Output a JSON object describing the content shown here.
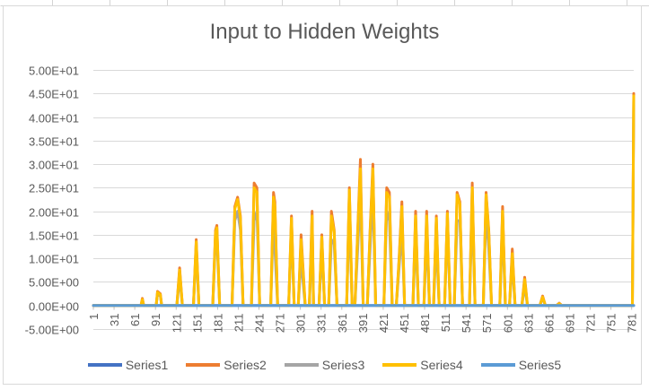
{
  "chart_data": {
    "type": "line",
    "title": "Input to Hidden Weights",
    "xlabel": "",
    "ylabel": "",
    "ylim": [
      -5,
      50
    ],
    "y_ticks": [
      -5,
      0,
      5,
      10,
      15,
      20,
      25,
      30,
      35,
      40,
      45,
      50
    ],
    "y_tick_labels": [
      "-5.00E+00",
      "0.00E+00",
      "5.00E+00",
      "1.00E+01",
      "1.50E+01",
      "2.00E+01",
      "2.50E+01",
      "3.00E+01",
      "3.50E+01",
      "4.00E+01",
      "4.50E+01",
      "5.00E+01"
    ],
    "x_ticks": [
      1,
      31,
      61,
      91,
      121,
      151,
      181,
      211,
      241,
      271,
      301,
      331,
      361,
      391,
      421,
      451,
      481,
      511,
      541,
      571,
      601,
      631,
      661,
      691,
      721,
      751,
      781
    ],
    "x_range": [
      1,
      784
    ],
    "grid": true,
    "legend_position": "bottom",
    "series": [
      {
        "name": "Series1",
        "color": "#4472c4",
        "points": [
          [
            1,
            0
          ],
          [
            784,
            0
          ]
        ]
      },
      {
        "name": "Series2",
        "color": "#ed7d31",
        "points": [
          [
            1,
            0
          ],
          [
            70,
            0
          ],
          [
            72,
            1.5
          ],
          [
            74,
            0
          ],
          [
            92,
            0
          ],
          [
            94,
            3
          ],
          [
            98,
            2.5
          ],
          [
            100,
            0
          ],
          [
            122,
            0
          ],
          [
            126,
            8
          ],
          [
            130,
            0
          ],
          [
            146,
            0
          ],
          [
            150,
            14
          ],
          [
            154,
            0
          ],
          [
            174,
            0
          ],
          [
            178,
            16
          ],
          [
            180,
            17
          ],
          [
            184,
            0
          ],
          [
            202,
            0
          ],
          [
            206,
            21
          ],
          [
            210,
            23
          ],
          [
            214,
            19
          ],
          [
            218,
            0
          ],
          [
            230,
            0
          ],
          [
            234,
            26
          ],
          [
            238,
            25
          ],
          [
            242,
            0
          ],
          [
            258,
            0
          ],
          [
            262,
            24
          ],
          [
            264,
            22
          ],
          [
            268,
            0
          ],
          [
            284,
            0
          ],
          [
            288,
            19
          ],
          [
            292,
            0
          ],
          [
            298,
            0
          ],
          [
            302,
            15
          ],
          [
            306,
            5
          ],
          [
            308,
            0
          ],
          [
            314,
            0
          ],
          [
            318,
            20
          ],
          [
            320,
            0
          ],
          [
            328,
            0
          ],
          [
            332,
            15
          ],
          [
            336,
            0
          ],
          [
            342,
            0
          ],
          [
            346,
            20
          ],
          [
            350,
            16
          ],
          [
            354,
            0
          ],
          [
            368,
            0
          ],
          [
            372,
            25
          ],
          [
            376,
            0
          ],
          [
            380,
            0
          ],
          [
            384,
            16
          ],
          [
            388,
            31
          ],
          [
            392,
            0
          ],
          [
            398,
            0
          ],
          [
            402,
            16
          ],
          [
            406,
            30
          ],
          [
            410,
            0
          ],
          [
            422,
            0
          ],
          [
            426,
            25
          ],
          [
            430,
            24
          ],
          [
            434,
            0
          ],
          [
            440,
            0
          ],
          [
            444,
            10
          ],
          [
            448,
            22
          ],
          [
            452,
            0
          ],
          [
            464,
            0
          ],
          [
            468,
            20
          ],
          [
            472,
            0
          ],
          [
            480,
            0
          ],
          [
            484,
            20
          ],
          [
            488,
            0
          ],
          [
            494,
            0
          ],
          [
            498,
            19
          ],
          [
            502,
            0
          ],
          [
            510,
            0
          ],
          [
            514,
            20
          ],
          [
            518,
            0
          ],
          [
            524,
            0
          ],
          [
            528,
            24
          ],
          [
            532,
            22
          ],
          [
            536,
            0
          ],
          [
            546,
            0
          ],
          [
            550,
            26
          ],
          [
            554,
            0
          ],
          [
            566,
            0
          ],
          [
            570,
            24
          ],
          [
            574,
            16
          ],
          [
            578,
            0
          ],
          [
            590,
            0
          ],
          [
            594,
            21
          ],
          [
            598,
            0
          ],
          [
            604,
            0
          ],
          [
            608,
            12
          ],
          [
            612,
            0
          ],
          [
            622,
            0
          ],
          [
            626,
            6
          ],
          [
            630,
            0
          ],
          [
            648,
            0
          ],
          [
            652,
            2
          ],
          [
            656,
            0
          ],
          [
            672,
            0
          ],
          [
            676,
            0.5
          ],
          [
            680,
            0
          ],
          [
            782,
            0
          ],
          [
            784,
            45
          ]
        ]
      },
      {
        "name": "Series3",
        "color": "#a5a5a5",
        "points": [
          [
            1,
            0
          ],
          [
            70,
            0
          ],
          [
            72,
            1
          ],
          [
            74,
            0
          ],
          [
            92,
            0
          ],
          [
            94,
            2.5
          ],
          [
            98,
            2
          ],
          [
            100,
            0
          ],
          [
            122,
            0
          ],
          [
            126,
            6
          ],
          [
            130,
            0
          ],
          [
            146,
            0
          ],
          [
            150,
            12
          ],
          [
            154,
            0
          ],
          [
            174,
            0
          ],
          [
            178,
            14
          ],
          [
            180,
            15
          ],
          [
            184,
            0
          ],
          [
            202,
            0
          ],
          [
            206,
            18
          ],
          [
            210,
            20
          ],
          [
            214,
            16
          ],
          [
            218,
            0
          ],
          [
            230,
            0
          ],
          [
            234,
            18
          ],
          [
            238,
            20
          ],
          [
            242,
            0
          ],
          [
            258,
            0
          ],
          [
            262,
            19
          ],
          [
            264,
            12
          ],
          [
            268,
            0
          ],
          [
            284,
            0
          ],
          [
            288,
            16
          ],
          [
            292,
            0
          ],
          [
            298,
            0
          ],
          [
            302,
            10
          ],
          [
            306,
            3
          ],
          [
            308,
            0
          ],
          [
            314,
            0
          ],
          [
            318,
            15
          ],
          [
            320,
            0
          ],
          [
            328,
            0
          ],
          [
            332,
            12
          ],
          [
            336,
            0
          ],
          [
            342,
            0
          ],
          [
            346,
            14
          ],
          [
            350,
            13
          ],
          [
            354,
            0
          ],
          [
            368,
            0
          ],
          [
            372,
            20
          ],
          [
            376,
            0
          ],
          [
            380,
            0
          ],
          [
            384,
            12
          ],
          [
            388,
            24
          ],
          [
            392,
            0
          ],
          [
            398,
            0
          ],
          [
            402,
            12
          ],
          [
            406,
            24
          ],
          [
            410,
            0
          ],
          [
            422,
            0
          ],
          [
            426,
            20
          ],
          [
            430,
            18
          ],
          [
            434,
            0
          ],
          [
            440,
            0
          ],
          [
            444,
            8
          ],
          [
            448,
            16
          ],
          [
            452,
            0
          ],
          [
            464,
            0
          ],
          [
            468,
            15
          ],
          [
            472,
            0
          ],
          [
            480,
            0
          ],
          [
            484,
            15
          ],
          [
            488,
            0
          ],
          [
            494,
            0
          ],
          [
            498,
            14
          ],
          [
            502,
            0
          ],
          [
            510,
            0
          ],
          [
            514,
            17
          ],
          [
            518,
            0
          ],
          [
            524,
            0
          ],
          [
            528,
            18
          ],
          [
            532,
            18
          ],
          [
            536,
            0
          ],
          [
            546,
            0
          ],
          [
            550,
            21
          ],
          [
            554,
            0
          ],
          [
            566,
            0
          ],
          [
            570,
            20
          ],
          [
            574,
            12
          ],
          [
            578,
            0
          ],
          [
            590,
            0
          ],
          [
            594,
            17
          ],
          [
            598,
            0
          ],
          [
            604,
            0
          ],
          [
            608,
            9
          ],
          [
            612,
            0
          ],
          [
            622,
            0
          ],
          [
            626,
            4
          ],
          [
            630,
            0
          ],
          [
            648,
            0
          ],
          [
            652,
            1.5
          ],
          [
            656,
            0
          ],
          [
            672,
            0
          ],
          [
            676,
            0.3
          ],
          [
            680,
            0
          ],
          [
            782,
            0
          ],
          [
            784,
            44
          ]
        ]
      },
      {
        "name": "Series4",
        "color": "#ffc000",
        "points": [
          [
            1,
            0
          ],
          [
            70,
            0
          ],
          [
            72,
            1.3
          ],
          [
            74,
            0
          ],
          [
            92,
            0
          ],
          [
            94,
            2.8
          ],
          [
            98,
            2.3
          ],
          [
            100,
            0
          ],
          [
            122,
            0
          ],
          [
            126,
            7.5
          ],
          [
            130,
            0
          ],
          [
            146,
            0
          ],
          [
            150,
            13.5
          ],
          [
            154,
            0
          ],
          [
            174,
            0
          ],
          [
            178,
            15.5
          ],
          [
            180,
            16.5
          ],
          [
            184,
            0
          ],
          [
            202,
            0
          ],
          [
            206,
            20.5
          ],
          [
            210,
            22.5
          ],
          [
            214,
            18.5
          ],
          [
            218,
            0
          ],
          [
            230,
            0
          ],
          [
            234,
            25
          ],
          [
            238,
            24
          ],
          [
            242,
            0
          ],
          [
            258,
            0
          ],
          [
            262,
            23
          ],
          [
            264,
            21
          ],
          [
            268,
            0
          ],
          [
            284,
            0
          ],
          [
            288,
            18.5
          ],
          [
            292,
            0
          ],
          [
            298,
            0
          ],
          [
            302,
            14
          ],
          [
            306,
            4.5
          ],
          [
            308,
            0
          ],
          [
            314,
            0
          ],
          [
            318,
            19
          ],
          [
            320,
            0
          ],
          [
            328,
            0
          ],
          [
            332,
            14.5
          ],
          [
            336,
            0
          ],
          [
            342,
            0
          ],
          [
            346,
            19
          ],
          [
            350,
            15.5
          ],
          [
            354,
            0
          ],
          [
            368,
            0
          ],
          [
            372,
            24.5
          ],
          [
            376,
            0
          ],
          [
            380,
            0
          ],
          [
            384,
            15.5
          ],
          [
            388,
            29
          ],
          [
            392,
            0
          ],
          [
            398,
            0
          ],
          [
            402,
            15.5
          ],
          [
            406,
            29
          ],
          [
            410,
            0
          ],
          [
            422,
            0
          ],
          [
            426,
            24
          ],
          [
            430,
            23
          ],
          [
            434,
            0
          ],
          [
            440,
            0
          ],
          [
            444,
            9.5
          ],
          [
            448,
            21
          ],
          [
            452,
            0
          ],
          [
            464,
            0
          ],
          [
            468,
            19
          ],
          [
            472,
            0
          ],
          [
            480,
            0
          ],
          [
            484,
            19
          ],
          [
            488,
            0
          ],
          [
            494,
            0
          ],
          [
            498,
            18.5
          ],
          [
            502,
            0
          ],
          [
            510,
            0
          ],
          [
            514,
            19.5
          ],
          [
            518,
            0
          ],
          [
            524,
            0
          ],
          [
            528,
            23.5
          ],
          [
            532,
            21.5
          ],
          [
            536,
            0
          ],
          [
            546,
            0
          ],
          [
            550,
            25
          ],
          [
            554,
            0
          ],
          [
            566,
            0
          ],
          [
            570,
            23.5
          ],
          [
            574,
            15.5
          ],
          [
            578,
            0
          ],
          [
            590,
            0
          ],
          [
            594,
            20
          ],
          [
            598,
            0
          ],
          [
            604,
            0
          ],
          [
            608,
            11
          ],
          [
            612,
            0
          ],
          [
            622,
            0
          ],
          [
            626,
            5.5
          ],
          [
            630,
            0
          ],
          [
            648,
            0
          ],
          [
            652,
            1.8
          ],
          [
            656,
            0
          ],
          [
            672,
            0
          ],
          [
            676,
            0.4
          ],
          [
            680,
            0
          ],
          [
            782,
            0
          ],
          [
            784,
            44.5
          ]
        ]
      },
      {
        "name": "Series5",
        "color": "#5b9bd5",
        "points": [
          [
            1,
            0
          ],
          [
            784,
            0
          ]
        ]
      }
    ]
  }
}
